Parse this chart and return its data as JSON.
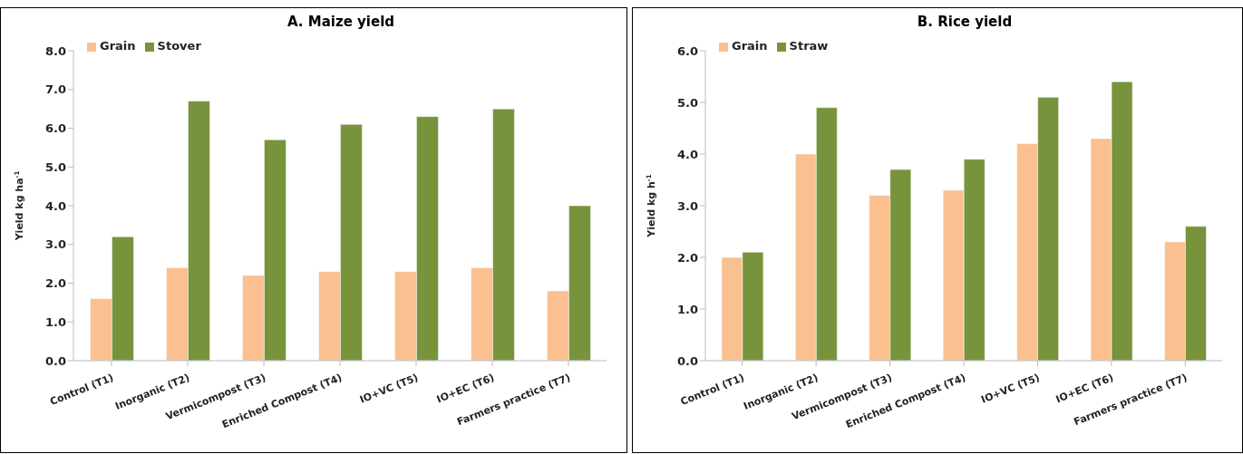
{
  "chart_data": [
    {
      "type": "bar",
      "title": "A. Maize yield",
      "ylabel": "Yield kg ha$^{-1}$",
      "categories": [
        "Control (T1)",
        "Inorganic (T2)",
        "Vermicompost (T3)",
        "Enriched Compost (T4)",
        "IO+VC (T5)",
        "IO+EC (T6)",
        "Farmers practice (T7)"
      ],
      "series": [
        {
          "name": "Grain",
          "color": "#fac090",
          "values": [
            1.6,
            2.4,
            2.2,
            2.3,
            2.3,
            2.4,
            1.8
          ]
        },
        {
          "name": "Stover",
          "color": "#77933c",
          "values": [
            3.2,
            6.7,
            5.7,
            6.1,
            6.3,
            6.5,
            4.0
          ]
        }
      ],
      "ylim": [
        0,
        8
      ],
      "yticks": [
        {
          "value": 0,
          "label": "0.0"
        },
        {
          "value": 1,
          "label": "1.0"
        },
        {
          "value": 2,
          "label": "2.0"
        },
        {
          "value": 3,
          "label": "3.0"
        },
        {
          "value": 4,
          "label": "4.0"
        },
        {
          "value": 5,
          "label": "5.0"
        },
        {
          "value": 6,
          "label": "6.0"
        },
        {
          "value": 7,
          "label": "7.0"
        },
        {
          "value": 8,
          "label": "8.0"
        }
      ],
      "grid": false,
      "legend": "top left"
    },
    {
      "type": "bar",
      "title": "B. Rice yield",
      "ylabel": "Yield kg h$^{-1}$",
      "categories": [
        "Control (T1)",
        "Inorganic (T2)",
        "Vermicompost (T3)",
        "Enriched Compost (T4)",
        "IO+VC (T5)",
        "IO+EC (T6)",
        "Farmers practice  (T7)"
      ],
      "series": [
        {
          "name": "Grain",
          "color": "#fac090",
          "values": [
            2.0,
            4.0,
            3.2,
            3.3,
            4.2,
            4.3,
            2.3
          ]
        },
        {
          "name": "Straw",
          "color": "#77933c",
          "values": [
            2.1,
            4.9,
            3.7,
            3.9,
            5.1,
            5.4,
            2.6
          ]
        }
      ],
      "ylim": [
        0,
        6
      ],
      "yticks": [
        {
          "value": 0,
          "label": "0.0"
        },
        {
          "value": 1,
          "label": "1.0"
        },
        {
          "value": 2,
          "label": "2.0"
        },
        {
          "value": 3,
          "label": "3.0"
        },
        {
          "value": 4,
          "label": "4.0"
        },
        {
          "value": 5,
          "label": "5.0"
        },
        {
          "value": 6,
          "label": "6.0"
        }
      ],
      "grid": false,
      "legend": "top left"
    }
  ]
}
